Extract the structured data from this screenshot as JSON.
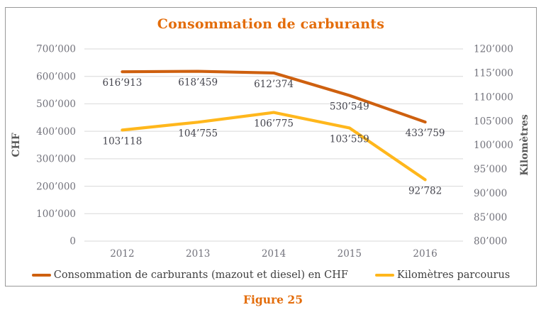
{
  "caption": {
    "text": "Figure 25"
  },
  "colors": {
    "title_orange": "#E36C0A",
    "box_border": "#999999",
    "gridline": "#D9D9D9",
    "tick_label": "#72727B",
    "data_label": "#45454E",
    "axis_title": "#595959",
    "legend_text": "#3F3F3F"
  },
  "chart_data": {
    "type": "line",
    "title": "Consommation de carburants",
    "categories": [
      "2012",
      "2013",
      "2014",
      "2015",
      "2016"
    ],
    "series": [
      {
        "name": "Consommation de carburants (mazout et diesel) en CHF",
        "axis": "left",
        "color": "#CE600F",
        "values": [
          616913,
          618459,
          612374,
          530549,
          433759
        ],
        "labels": [
          "616’913",
          "618’459",
          "612’374",
          "530’549",
          "433’759"
        ]
      },
      {
        "name": "Kilomètres parcourus",
        "axis": "right",
        "color": "#FFB71C",
        "values": [
          103118,
          104755,
          106775,
          103559,
          92782
        ],
        "labels": [
          "103’118",
          "104’755",
          "106’775",
          "103’559",
          "92’782"
        ]
      }
    ],
    "left_axis": {
      "title": "CHF",
      "min": 0,
      "max": 700000,
      "step": 100000,
      "tick_labels": [
        "0",
        "100’000",
        "200’000",
        "300’000",
        "400’000",
        "500’000",
        "600’000",
        "700’000"
      ]
    },
    "right_axis": {
      "title": "Kilomètres",
      "min": 80000,
      "max": 120000,
      "step": 5000,
      "tick_labels": [
        "80’000",
        "85’000",
        "90’000",
        "95’000",
        "100’000",
        "105’000",
        "110’000",
        "115’000",
        "120’000"
      ]
    },
    "grid": true,
    "legend_position": "bottom"
  }
}
